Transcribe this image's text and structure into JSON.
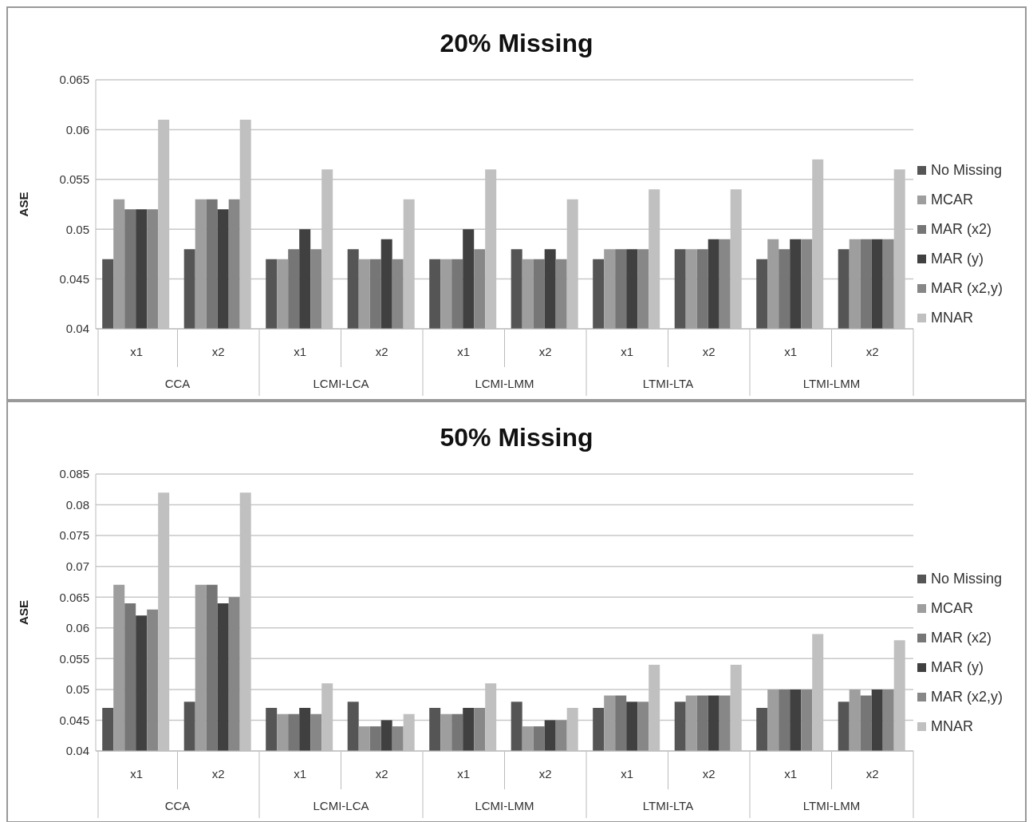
{
  "chart_data": [
    {
      "type": "bar",
      "title": "20% Missing",
      "ylabel": "ASE",
      "categories": [
        "x1",
        "x2",
        "x1",
        "x2",
        "x1",
        "x2",
        "x1",
        "x2",
        "x1",
        "x2"
      ],
      "annotations": [
        "CCA",
        "LCMI-LCA",
        "LCMI-LMM",
        "LTMI-LTA",
        "LTMI-LMM"
      ],
      "series": [
        {
          "name": "No Missing",
          "color": "#555555",
          "values": [
            0.047,
            0.048,
            0.047,
            0.048,
            0.047,
            0.048,
            0.047,
            0.048,
            0.047,
            0.048
          ]
        },
        {
          "name": "MCAR",
          "color": "#9e9e9e",
          "values": [
            0.053,
            0.053,
            0.047,
            0.047,
            0.047,
            0.047,
            0.048,
            0.048,
            0.049,
            0.049
          ]
        },
        {
          "name": "MAR (x2)",
          "color": "#767676",
          "values": [
            0.052,
            0.053,
            0.048,
            0.047,
            0.047,
            0.047,
            0.048,
            0.048,
            0.048,
            0.049
          ]
        },
        {
          "name": "MAR (y)",
          "color": "#404040",
          "values": [
            0.052,
            0.052,
            0.05,
            0.049,
            0.05,
            0.048,
            0.048,
            0.049,
            0.049,
            0.049
          ]
        },
        {
          "name": "MAR (x2,y)",
          "color": "#878787",
          "values": [
            0.052,
            0.053,
            0.048,
            0.047,
            0.048,
            0.047,
            0.048,
            0.049,
            0.049,
            0.049
          ]
        },
        {
          "name": "MNAR",
          "color": "#c0c0c0",
          "values": [
            0.061,
            0.061,
            0.056,
            0.053,
            0.056,
            0.053,
            0.054,
            0.054,
            0.057,
            0.056
          ]
        }
      ],
      "ylim": [
        0.04,
        0.065
      ],
      "yticks": [
        0.04,
        0.045,
        0.05,
        0.055,
        0.06,
        0.065
      ],
      "grid": "y",
      "legend": "right"
    },
    {
      "type": "bar",
      "title": "50% Missing",
      "ylabel": "ASE",
      "categories": [
        "x1",
        "x2",
        "x1",
        "x2",
        "x1",
        "x2",
        "x1",
        "x2",
        "x1",
        "x2"
      ],
      "annotations": [
        "CCA",
        "LCMI-LCA",
        "LCMI-LMM",
        "LTMI-LTA",
        "LTMI-LMM"
      ],
      "series": [
        {
          "name": "No Missing",
          "color": "#555555",
          "values": [
            0.047,
            0.048,
            0.047,
            0.048,
            0.047,
            0.048,
            0.047,
            0.048,
            0.047,
            0.048
          ]
        },
        {
          "name": "MCAR",
          "color": "#9e9e9e",
          "values": [
            0.067,
            0.067,
            0.046,
            0.044,
            0.046,
            0.044,
            0.049,
            0.049,
            0.05,
            0.05
          ]
        },
        {
          "name": "MAR (x2)",
          "color": "#767676",
          "values": [
            0.064,
            0.067,
            0.046,
            0.044,
            0.046,
            0.044,
            0.049,
            0.049,
            0.05,
            0.049
          ]
        },
        {
          "name": "MAR (y)",
          "color": "#404040",
          "values": [
            0.062,
            0.064,
            0.047,
            0.045,
            0.047,
            0.045,
            0.048,
            0.049,
            0.05,
            0.05
          ]
        },
        {
          "name": "MAR (x2,y)",
          "color": "#878787",
          "values": [
            0.063,
            0.065,
            0.046,
            0.044,
            0.047,
            0.045,
            0.048,
            0.049,
            0.05,
            0.05
          ]
        },
        {
          "name": "MNAR",
          "color": "#c0c0c0",
          "values": [
            0.082,
            0.082,
            0.051,
            0.046,
            0.051,
            0.047,
            0.054,
            0.054,
            0.059,
            0.058
          ]
        }
      ],
      "ylim": [
        0.04,
        0.085
      ],
      "yticks": [
        0.04,
        0.045,
        0.05,
        0.055,
        0.06,
        0.065,
        0.07,
        0.075,
        0.08,
        0.085
      ],
      "grid": "y",
      "legend": "right"
    }
  ]
}
